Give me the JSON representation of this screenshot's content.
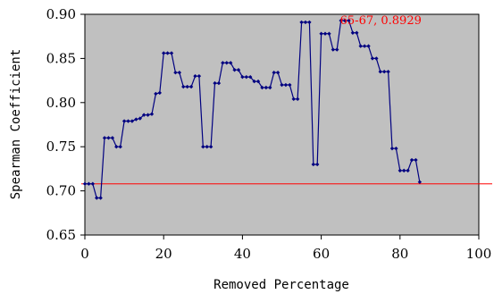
{
  "chart_data": {
    "type": "line",
    "title": "",
    "xlabel": "Removed Percentage",
    "ylabel": "Spearman Coefficient",
    "xlim": [
      0,
      100
    ],
    "ylim": [
      0.65,
      0.9
    ],
    "xticks": [
      0,
      20,
      40,
      60,
      80,
      100
    ],
    "yticks": [
      0.65,
      0.7,
      0.75,
      0.8,
      0.85,
      0.9
    ],
    "xtick_labels": [
      "0",
      "20",
      "40",
      "60",
      "80",
      "100"
    ],
    "ytick_labels": [
      "0.65",
      "0.70",
      "0.75",
      "0.80",
      "0.85",
      "0.90"
    ],
    "plot_background": "#c0c0c0",
    "grid": false,
    "series": [
      {
        "color": "#000080",
        "marker": "diamond",
        "x": [
          0,
          1,
          2,
          3,
          4,
          5,
          6,
          7,
          8,
          9,
          10,
          11,
          12,
          13,
          14,
          15,
          16,
          17,
          18,
          19,
          20,
          21,
          22,
          23,
          24,
          25,
          26,
          27,
          28,
          29,
          30,
          31,
          32,
          33,
          34,
          35,
          36,
          37,
          38,
          39,
          40,
          41,
          42,
          43,
          44,
          45,
          46,
          47,
          48,
          49,
          50,
          51,
          52,
          53,
          54,
          55,
          56,
          57,
          58,
          59,
          60,
          61,
          62,
          63,
          64,
          65,
          66,
          67,
          68,
          69,
          70,
          71,
          72,
          73,
          74,
          75,
          76,
          77,
          78,
          79,
          80,
          81,
          82,
          83,
          84,
          85
        ],
        "y": [
          0.708,
          0.708,
          0.708,
          0.692,
          0.692,
          0.76,
          0.76,
          0.76,
          0.75,
          0.75,
          0.779,
          0.779,
          0.779,
          0.781,
          0.782,
          0.786,
          0.786,
          0.787,
          0.81,
          0.811,
          0.856,
          0.856,
          0.856,
          0.834,
          0.834,
          0.818,
          0.818,
          0.818,
          0.83,
          0.83,
          0.75,
          0.75,
          0.75,
          0.822,
          0.822,
          0.845,
          0.845,
          0.845,
          0.837,
          0.837,
          0.829,
          0.829,
          0.829,
          0.824,
          0.824,
          0.817,
          0.817,
          0.817,
          0.834,
          0.834,
          0.82,
          0.82,
          0.82,
          0.804,
          0.804,
          0.891,
          0.891,
          0.891,
          0.73,
          0.73,
          0.878,
          0.878,
          0.878,
          0.86,
          0.86,
          0.8929,
          0.8929,
          0.8929,
          0.879,
          0.879,
          0.864,
          0.864,
          0.864,
          0.85,
          0.85,
          0.835,
          0.835,
          0.835,
          0.748,
          0.748,
          0.723,
          0.723,
          0.723,
          0.735,
          0.735,
          0.71
        ]
      }
    ],
    "reference_line": {
      "y": 0.708,
      "color": "#ff0000"
    },
    "annotation": {
      "text": "65-67, 0.8929",
      "x": 65,
      "y": 0.8929,
      "color": "#ff0000"
    }
  }
}
